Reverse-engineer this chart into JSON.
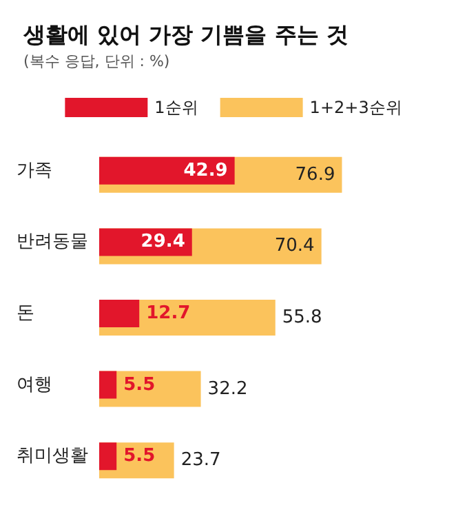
{
  "chart_data": {
    "type": "bar",
    "orientation": "horizontal",
    "title": "생활에 있어 가장 기쁨을 주는 것",
    "subtitle": "(복수 응답, 단위 : %)",
    "categories": [
      "가족",
      "반려동물",
      "돈",
      "여행",
      "취미생활"
    ],
    "series": [
      {
        "name": "1+2+3순위",
        "color": "#fbc35c",
        "values": [
          76.9,
          70.4,
          55.8,
          32.2,
          23.7
        ]
      },
      {
        "name": "1순위",
        "color": "#e2162b",
        "values": [
          42.9,
          29.4,
          12.7,
          5.5,
          5.5
        ]
      }
    ],
    "data_labels": true,
    "legend": "top"
  }
}
